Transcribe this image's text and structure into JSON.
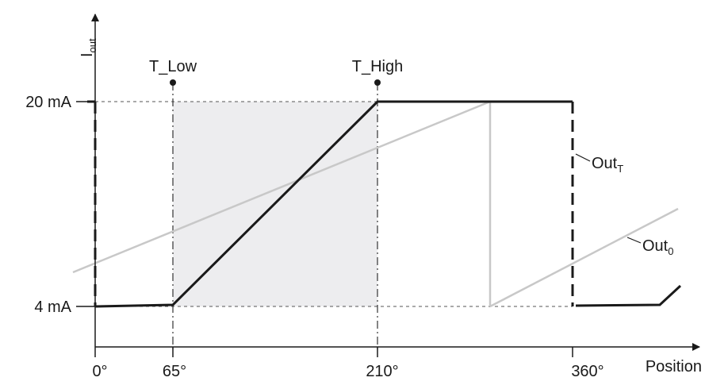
{
  "y_axis": {
    "label_main": "I",
    "label_sub": "out"
  },
  "x_axis": {
    "label": "Position"
  },
  "y_ticks": [
    {
      "label": "20 mA",
      "value": 20
    },
    {
      "label": "4 mA",
      "value": 4
    }
  ],
  "x_ticks": [
    {
      "label": "0°",
      "value": 0
    },
    {
      "label": "65°",
      "value": 65
    },
    {
      "label": "210°",
      "value": 210
    },
    {
      "label": "360°",
      "value": 360
    }
  ],
  "markers": [
    {
      "label": "T_Low",
      "position": 65
    },
    {
      "label": "T_High",
      "position": 210
    }
  ],
  "curves": [
    {
      "id": "outT",
      "label_main": "Out",
      "label_sub": "T",
      "style": "black"
    },
    {
      "id": "out0",
      "label_main": "Out",
      "label_sub": "0",
      "style": "gray"
    }
  ],
  "colors": {
    "ink": "#1a1a1a",
    "gray_curve": "#c8c8c8",
    "shade": "#ededef",
    "guide": "#555555"
  }
}
